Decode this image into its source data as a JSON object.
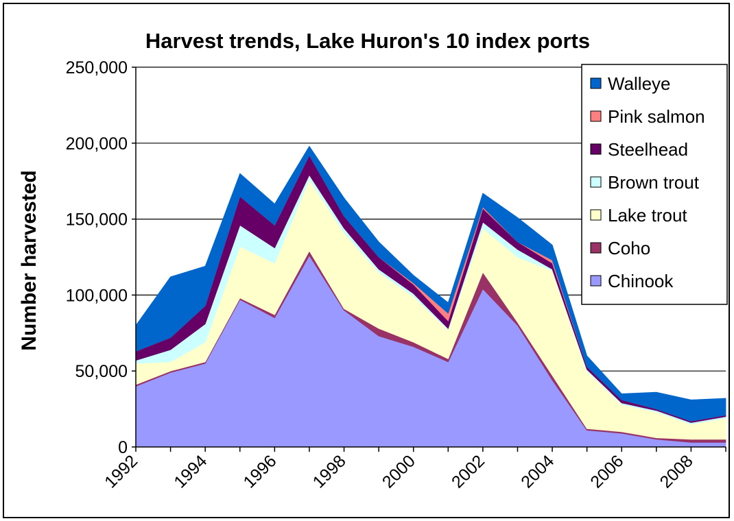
{
  "chart_data": {
    "type": "area",
    "stacked": true,
    "title": "Harvest trends, Lake Huron's 10 index ports",
    "xlabel": "",
    "ylabel": "Number harvested",
    "x": [
      1992,
      1993,
      1994,
      1995,
      1996,
      1997,
      1998,
      1999,
      2000,
      2001,
      2002,
      2003,
      2004,
      2005,
      2006,
      2007,
      2008,
      2009
    ],
    "x_tick_labels": [
      "1992",
      "1994",
      "1996",
      "1998",
      "2000",
      "2002",
      "2004",
      "2006",
      "2008"
    ],
    "y_tick_labels": [
      "0",
      "50,000",
      "100,000",
      "150,000",
      "200,000",
      "250,000"
    ],
    "ylim": [
      0,
      250000
    ],
    "grid": "horizontal",
    "legend_position": "right",
    "series": [
      {
        "name": "Chinook",
        "color": "#9999FF",
        "values": [
          40000,
          49000,
          55000,
          97000,
          85000,
          126000,
          90000,
          73000,
          66000,
          56000,
          104000,
          80000,
          44000,
          11000,
          9000,
          5000,
          3000,
          3000
        ]
      },
      {
        "name": "Coho",
        "color": "#993366",
        "values": [
          1000,
          1000,
          1000,
          1000,
          2000,
          3000,
          1000,
          5000,
          3000,
          2000,
          11000,
          2000,
          3000,
          1000,
          1000,
          1000,
          2000,
          2000
        ]
      },
      {
        "name": "Lake trout",
        "color": "#FFFFCC",
        "values": [
          14000,
          6000,
          13000,
          34000,
          34000,
          47000,
          50000,
          37000,
          30000,
          19000,
          29000,
          43000,
          69000,
          38000,
          18000,
          17000,
          10000,
          14000
        ]
      },
      {
        "name": "Brown trout",
        "color": "#CCFFFF",
        "values": [
          2000,
          8000,
          12000,
          14000,
          10000,
          3000,
          3000,
          2000,
          2000,
          1000,
          4000,
          5000,
          1000,
          1000,
          1000,
          1000,
          1000,
          1000
        ]
      },
      {
        "name": "Steelhead",
        "color": "#660066",
        "values": [
          6000,
          8000,
          12000,
          19000,
          15000,
          13000,
          8000,
          8000,
          6000,
          5000,
          9000,
          5000,
          4000,
          2000,
          2000,
          1000,
          1000,
          1000
        ]
      },
      {
        "name": "Pink salmon",
        "color": "#FF8080",
        "values": [
          0,
          0,
          0,
          0,
          0,
          0,
          0,
          0,
          1000,
          5000,
          1000,
          0,
          2000,
          0,
          0,
          0,
          0,
          0
        ]
      },
      {
        "name": "Walleye",
        "color": "#0066CC",
        "values": [
          17000,
          40000,
          26000,
          15000,
          14000,
          6000,
          12000,
          10000,
          5000,
          7000,
          9000,
          16000,
          10000,
          7000,
          4000,
          11000,
          14000,
          11000
        ]
      }
    ]
  }
}
